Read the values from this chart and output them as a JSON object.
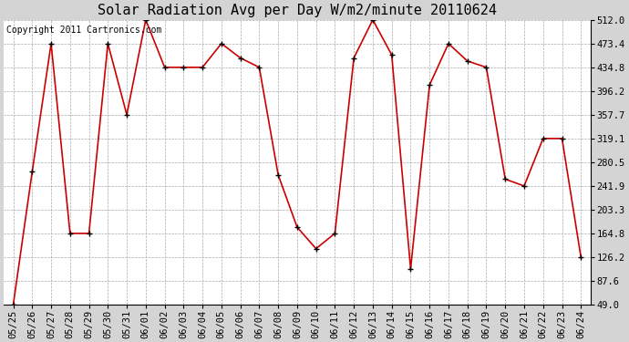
{
  "title": "Solar Radiation Avg per Day W/m2/minute 20110624",
  "copyright": "Copyright 2011 Cartronics.com",
  "dates": [
    "05/25",
    "05/26",
    "05/27",
    "05/28",
    "05/29",
    "05/30",
    "05/31",
    "06/01",
    "06/02",
    "06/03",
    "06/04",
    "06/05",
    "06/06",
    "06/07",
    "06/08",
    "06/09",
    "06/10",
    "06/11",
    "06/12",
    "06/13",
    "06/14",
    "06/15",
    "06/16",
    "06/17",
    "06/18",
    "06/19",
    "06/20",
    "06/21",
    "06/22",
    "06/23",
    "06/24"
  ],
  "values": [
    49.0,
    265.0,
    473.4,
    164.8,
    164.8,
    473.4,
    357.7,
    512.0,
    434.8,
    434.8,
    434.8,
    473.4,
    450.0,
    434.8,
    260.0,
    175.0,
    140.0,
    164.8,
    450.0,
    512.0,
    455.0,
    107.0,
    406.0,
    473.4,
    445.0,
    434.8,
    253.0,
    241.9,
    319.1,
    319.1,
    126.2
  ],
  "ylim": [
    49.0,
    512.0
  ],
  "yticks": [
    49.0,
    87.6,
    126.2,
    164.8,
    203.3,
    241.9,
    280.5,
    319.1,
    357.7,
    396.2,
    434.8,
    473.4,
    512.0
  ],
  "line_color": "#cc0000",
  "marker_color": "#000000",
  "bg_color": "#d4d4d4",
  "plot_bg_color": "#ffffff",
  "grid_color": "#aaaaaa",
  "title_fontsize": 11,
  "copyright_fontsize": 7,
  "tick_fontsize": 7.5,
  "ytick_fontsize": 7.5
}
